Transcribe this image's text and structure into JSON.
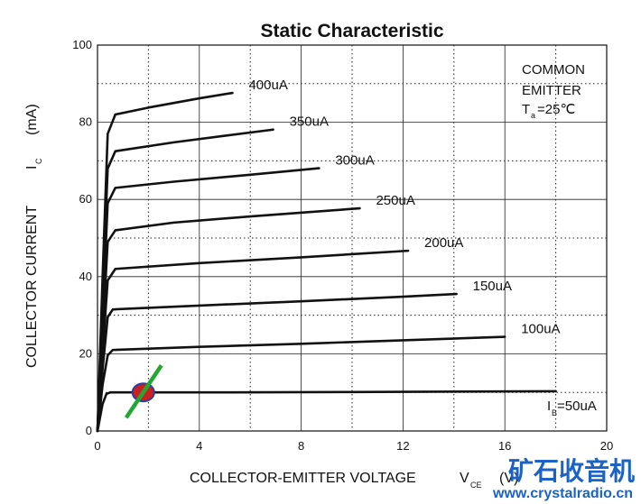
{
  "chart_data": {
    "type": "line",
    "title": "Static Characteristic",
    "xlabel": "COLLECTOR-EMITTER VOLTAGE",
    "xlabel_symbol": "V",
    "xlabel_symbol_sub": "CE",
    "xlabel_unit": "(V)",
    "ylabel": "COLLECTOR CURRENT",
    "ylabel_symbol": "I",
    "ylabel_symbol_sub": "C",
    "ylabel_unit": "(mA)",
    "xlim": [
      0,
      20
    ],
    "ylim": [
      0,
      100
    ],
    "x_ticks": [
      "0",
      "4",
      "8",
      "12",
      "16",
      "20"
    ],
    "y_ticks": [
      "0",
      "20",
      "40",
      "60",
      "80",
      "100"
    ],
    "grid": true,
    "annotation": {
      "line1": "COMMON",
      "line2": "EMITTER",
      "temp_symbol": "T",
      "temp_sub": "a",
      "temp_value": "=25℃"
    },
    "series": [
      {
        "name": "50uA",
        "label_prefix": "I",
        "label_sub": "B",
        "label_value": "=50uA",
        "x": [
          0,
          0.2,
          0.35,
          0.5,
          5,
          10,
          18
        ],
        "y": [
          0,
          7,
          9.6,
          10,
          10,
          10.1,
          10.3
        ]
      },
      {
        "name": "100uA",
        "x": [
          0,
          0.2,
          0.4,
          0.6,
          4,
          8,
          12,
          16
        ],
        "y": [
          0,
          12,
          19.6,
          21,
          21.8,
          22.6,
          23.5,
          24.4
        ]
      },
      {
        "name": "150uA",
        "x": [
          0,
          0.2,
          0.4,
          0.6,
          4,
          8,
          12,
          14.1
        ],
        "y": [
          0,
          16,
          29.5,
          31.5,
          32.5,
          33.6,
          34.8,
          35.5
        ]
      },
      {
        "name": "200uA",
        "x": [
          0,
          0.2,
          0.4,
          0.7,
          4,
          8,
          12.2
        ],
        "y": [
          0,
          20,
          39,
          42,
          43.5,
          45,
          46.7
        ]
      },
      {
        "name": "250uA",
        "x": [
          0,
          0.2,
          0.4,
          0.7,
          3,
          6,
          10.3
        ],
        "y": [
          0,
          25,
          49,
          52,
          54,
          55.6,
          57.7
        ]
      },
      {
        "name": "300uA",
        "x": [
          0,
          0.2,
          0.4,
          0.7,
          3,
          6,
          8.7
        ],
        "y": [
          0,
          30,
          59,
          63,
          64.6,
          66.4,
          68.1
        ]
      },
      {
        "name": "350uA",
        "x": [
          0,
          0.2,
          0.4,
          0.7,
          3,
          5,
          6.9
        ],
        "y": [
          0,
          35,
          68,
          72.5,
          74.8,
          76.5,
          78.1
        ]
      },
      {
        "name": "400uA",
        "x": [
          0,
          0.2,
          0.4,
          0.7,
          2,
          4,
          5.3
        ],
        "y": [
          0,
          40,
          77,
          82,
          83.8,
          86.2,
          87.6
        ]
      }
    ]
  },
  "marker": {
    "x": 1.8,
    "y": 10,
    "fill": "#cc2020",
    "edge": "#2a3ea8",
    "line_color": "#22a832"
  },
  "watermark": {
    "chinese": "矿石收音机",
    "url": "www.crystalradio.cn",
    "color": "#1b62c4"
  }
}
